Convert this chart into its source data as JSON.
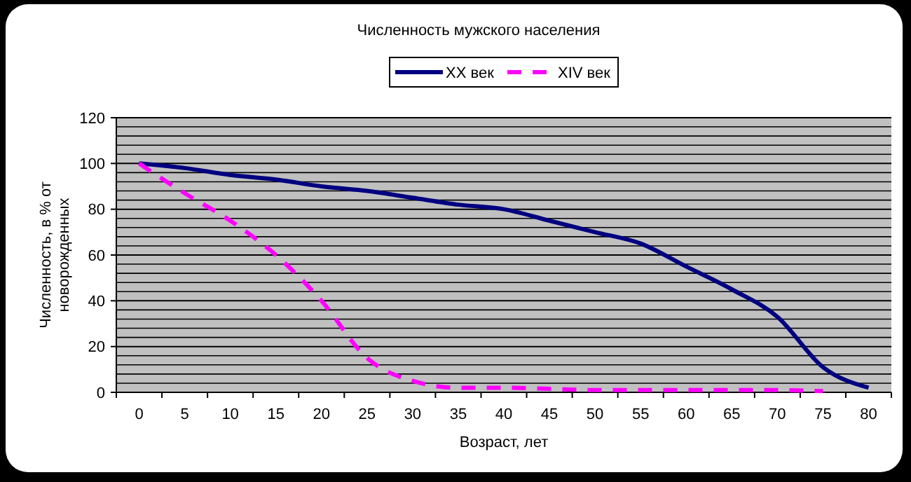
{
  "chart_data": {
    "type": "line",
    "title": "Численность мужского населения",
    "xlabel": "Возраст, лет",
    "ylabel": "Численность, в % от новорожденных",
    "categories": [
      "0",
      "5",
      "10",
      "15",
      "20",
      "25",
      "30",
      "35",
      "40",
      "45",
      "50",
      "55",
      "60",
      "65",
      "70",
      "75",
      "80"
    ],
    "series": [
      {
        "name": "XX век",
        "color": "#000080",
        "line_style": "solid",
        "values": [
          100,
          98,
          95,
          93,
          90,
          88,
          85,
          82,
          80,
          75,
          70,
          65,
          55,
          45,
          33,
          11,
          2
        ]
      },
      {
        "name": "XIV век",
        "color": "#ff00ff",
        "line_style": "dashed",
        "values": [
          100,
          87,
          75,
          60,
          40,
          15,
          5,
          2,
          2,
          1.5,
          1,
          1,
          1,
          1,
          1,
          0.5,
          null
        ]
      }
    ],
    "ylim": [
      0,
      120
    ],
    "yticks": [
      0,
      {
        "value": 4,
        "label": null
      },
      {
        "value": 8,
        "label": null
      },
      {
        "value": 12,
        "label": null
      },
      {
        "value": 16,
        "label": null
      },
      20,
      {
        "value": 24,
        "label": null
      },
      {
        "value": 28,
        "label": null
      },
      {
        "value": 32,
        "label": null
      },
      {
        "value": 36,
        "label": null
      },
      40,
      {
        "value": 44,
        "label": null
      },
      {
        "value": 48,
        "label": null
      },
      {
        "value": 52,
        "label": null
      },
      {
        "value": 56,
        "label": null
      },
      60,
      {
        "value": 64,
        "label": null
      },
      {
        "value": 68,
        "label": null
      },
      {
        "value": 72,
        "label": null
      },
      {
        "value": 76,
        "label": null
      },
      80,
      {
        "value": 84,
        "label": null
      },
      {
        "value": 88,
        "label": null
      },
      {
        "value": 92,
        "label": null
      },
      {
        "value": 96,
        "label": null
      },
      100,
      {
        "value": 104,
        "label": null
      },
      {
        "value": 108,
        "label": null
      },
      {
        "value": 112,
        "label": null
      },
      {
        "value": 116,
        "label": null
      },
      120
    ],
    "grid": "y",
    "legend": "top"
  }
}
